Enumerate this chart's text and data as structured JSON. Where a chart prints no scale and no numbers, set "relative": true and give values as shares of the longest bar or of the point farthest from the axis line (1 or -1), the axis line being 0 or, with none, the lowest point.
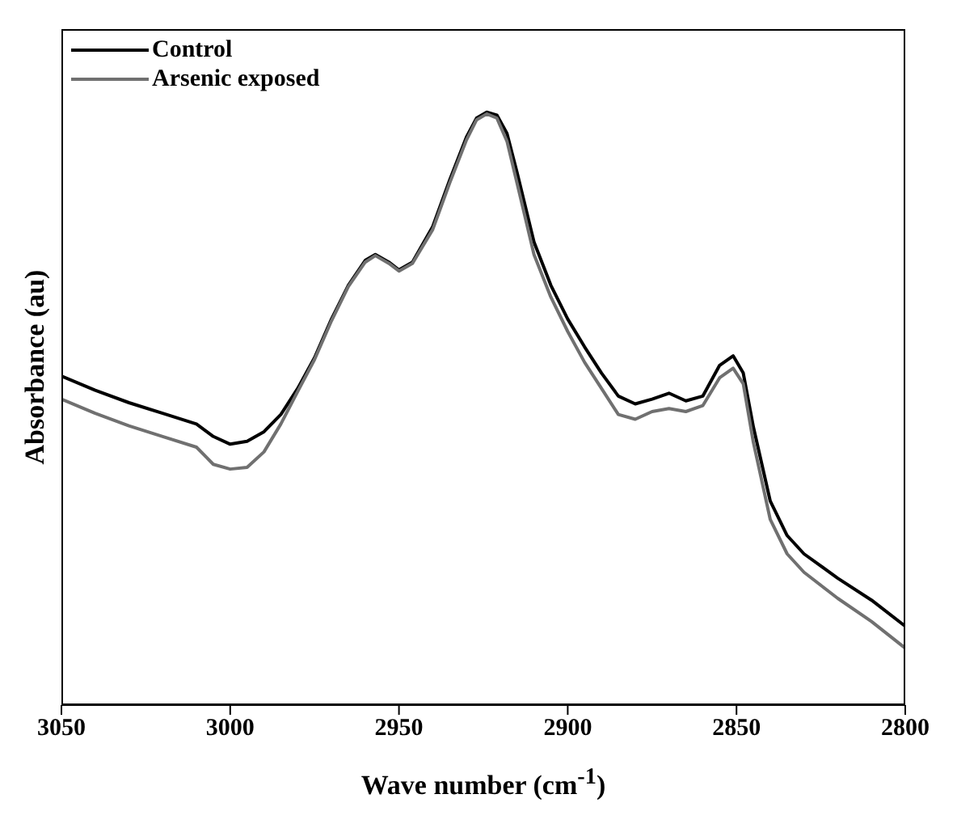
{
  "chart_data": {
    "type": "line",
    "relative": true,
    "xlabel": "Wave number (cm$^{-1}$)",
    "ylabel": "Absorbance (au)",
    "xlim": [
      3050,
      2800
    ],
    "xticks": [
      3050,
      3000,
      2950,
      2900,
      2850,
      2800
    ],
    "legend": "top left",
    "marker": "none",
    "line_style": "solid",
    "x": [
      3050,
      3040,
      3030,
      3020,
      3010,
      3005,
      3000,
      2995,
      2990,
      2985,
      2980,
      2975,
      2970,
      2965,
      2960,
      2957,
      2953,
      2950,
      2946,
      2940,
      2935,
      2930,
      2927,
      2924,
      2921,
      2918,
      2915,
      2910,
      2905,
      2900,
      2895,
      2890,
      2885,
      2880,
      2875,
      2870,
      2865,
      2860,
      2855,
      2851,
      2848,
      2845,
      2840,
      2835,
      2830,
      2820,
      2810,
      2800
    ],
    "series": [
      {
        "name": "Control",
        "color": "#000000",
        "values": [
          0.555,
          0.531,
          0.51,
          0.492,
          0.474,
          0.453,
          0.44,
          0.445,
          0.461,
          0.49,
          0.534,
          0.586,
          0.651,
          0.708,
          0.75,
          0.76,
          0.747,
          0.734,
          0.747,
          0.807,
          0.885,
          0.958,
          0.99,
          1.0,
          0.995,
          0.964,
          0.898,
          0.781,
          0.708,
          0.651,
          0.604,
          0.56,
          0.521,
          0.508,
          0.516,
          0.526,
          0.513,
          0.521,
          0.573,
          0.589,
          0.56,
          0.469,
          0.344,
          0.286,
          0.255,
          0.214,
          0.177,
          0.133
        ]
      },
      {
        "name": "Arsenic exposed",
        "color": "#707070",
        "values": [
          0.516,
          0.492,
          0.471,
          0.453,
          0.435,
          0.406,
          0.398,
          0.401,
          0.427,
          0.474,
          0.529,
          0.583,
          0.648,
          0.706,
          0.747,
          0.758,
          0.745,
          0.732,
          0.745,
          0.802,
          0.88,
          0.953,
          0.987,
          0.997,
          0.99,
          0.951,
          0.88,
          0.76,
          0.688,
          0.63,
          0.578,
          0.534,
          0.49,
          0.482,
          0.495,
          0.5,
          0.495,
          0.505,
          0.552,
          0.568,
          0.542,
          0.443,
          0.313,
          0.255,
          0.224,
          0.18,
          0.141,
          0.096
        ]
      }
    ]
  }
}
